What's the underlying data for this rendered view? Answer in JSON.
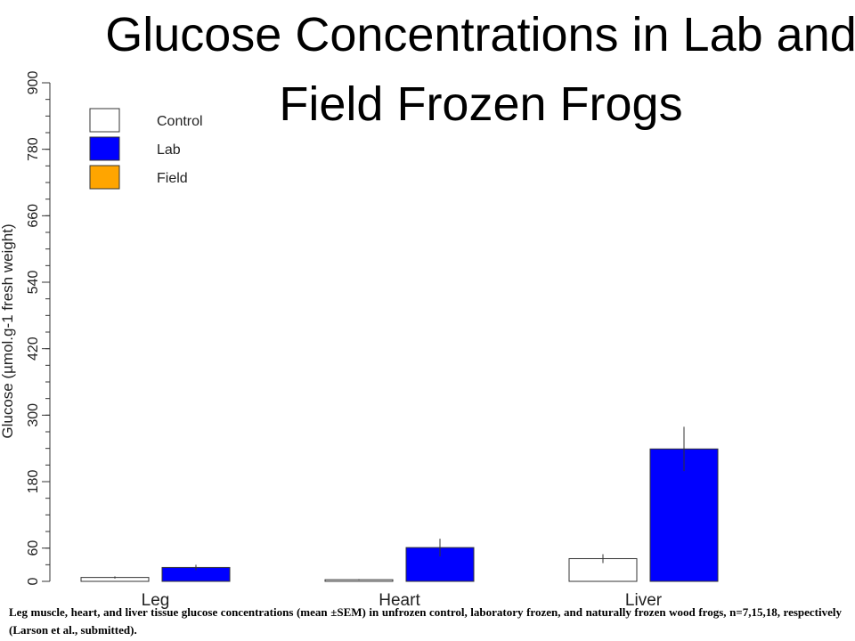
{
  "slide": {
    "title": "Glucose Concentrations in Lab and Field Frozen Frogs",
    "caption": "Leg muscle, heart, and liver tissue glucose concentrations (mean ±SEM) in unfrozen control, laboratory frozen, and naturally frozen wood frogs, n=7,15,18, respectively (Larson et al., submitted)."
  },
  "chart_data": {
    "type": "bar",
    "title": "",
    "xlabel": "",
    "ylabel": "Glucose (µmol.g-1 fresh weight)",
    "ylim": [
      0,
      900
    ],
    "yticks": [
      0,
      60,
      180,
      300,
      420,
      540,
      660,
      780,
      900
    ],
    "categories": [
      "Leg",
      "Heart",
      "Liver"
    ],
    "series": [
      {
        "name": "Control",
        "color": "#ffffff",
        "values": [
          7,
          3,
          41
        ],
        "errors": [
          2,
          1,
          8
        ]
      },
      {
        "name": "Lab",
        "color": "#0000ff",
        "values": [
          25,
          61,
          239
        ],
        "errors": [
          5,
          16,
          40
        ]
      },
      {
        "name": "Field",
        "color": "#ffa500",
        "values": [
          null,
          null,
          null
        ],
        "errors": [
          null,
          null,
          null
        ]
      }
    ],
    "legend": {
      "position": "top-left",
      "entries": [
        "Control",
        "Lab",
        "Field"
      ]
    },
    "grid": false
  }
}
